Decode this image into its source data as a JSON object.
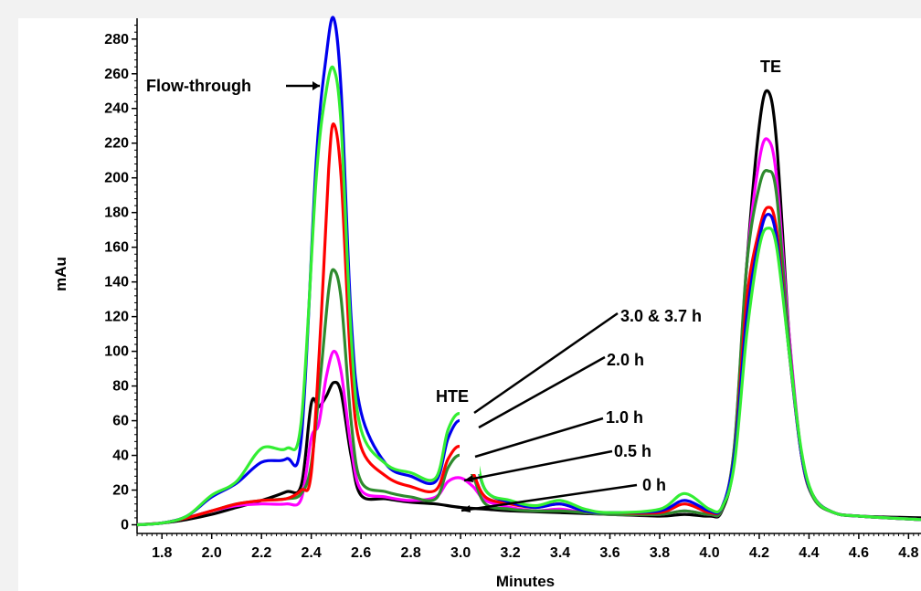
{
  "chart_data": {
    "type": "line",
    "title": "",
    "xlabel": "Minutes",
    "ylabel": "mAu",
    "xlim": [
      1.7,
      4.85
    ],
    "ylim": [
      -5,
      292
    ],
    "x_ticks": [
      "1.8",
      "2.0",
      "2.2",
      "2.4",
      "2.6",
      "2.8",
      "3.0",
      "3.2",
      "3.4",
      "3.6",
      "3.8",
      "4.0",
      "4.2",
      "4.4",
      "4.6",
      "4.8"
    ],
    "y_ticks": [
      "0",
      "20",
      "40",
      "60",
      "80",
      "100",
      "120",
      "140",
      "160",
      "180",
      "200",
      "220",
      "240",
      "260",
      "280"
    ],
    "grid": false,
    "legend": "none",
    "series": [
      {
        "color": "#000000",
        "points": [
          [
            1.7,
            0
          ],
          [
            1.8,
            1
          ],
          [
            1.9,
            3
          ],
          [
            2.0,
            6
          ],
          [
            2.1,
            10
          ],
          [
            2.2,
            14
          ],
          [
            2.3,
            19
          ],
          [
            2.36,
            23
          ],
          [
            2.4,
            70
          ],
          [
            2.43,
            68
          ],
          [
            2.46,
            74
          ],
          [
            2.49,
            82
          ],
          [
            2.52,
            76
          ],
          [
            2.56,
            40
          ],
          [
            2.6,
            17
          ],
          [
            2.7,
            15
          ],
          [
            2.8,
            13
          ],
          [
            2.9,
            12
          ],
          [
            3.0,
            10
          ],
          [
            3.1,
            9
          ],
          [
            3.2,
            8
          ],
          [
            3.4,
            7
          ],
          [
            3.6,
            6
          ],
          [
            3.8,
            5
          ],
          [
            3.9,
            6
          ],
          [
            4.0,
            5
          ],
          [
            4.05,
            8
          ],
          [
            4.1,
            40
          ],
          [
            4.15,
            150
          ],
          [
            4.2,
            230
          ],
          [
            4.235,
            250
          ],
          [
            4.27,
            220
          ],
          [
            4.32,
            110
          ],
          [
            4.37,
            40
          ],
          [
            4.42,
            15
          ],
          [
            4.5,
            7
          ],
          [
            4.6,
            5
          ],
          [
            4.85,
            4
          ]
        ]
      },
      {
        "color": "#0000ee",
        "points": [
          [
            1.7,
            0
          ],
          [
            1.8,
            1
          ],
          [
            1.9,
            5
          ],
          [
            2.0,
            16
          ],
          [
            2.1,
            24
          ],
          [
            2.2,
            36
          ],
          [
            2.3,
            38
          ],
          [
            2.36,
            50
          ],
          [
            2.42,
            210
          ],
          [
            2.46,
            270
          ],
          [
            2.49,
            292
          ],
          [
            2.52,
            250
          ],
          [
            2.56,
            120
          ],
          [
            2.6,
            65
          ],
          [
            2.7,
            35
          ],
          [
            2.8,
            28
          ],
          [
            2.9,
            25
          ],
          [
            2.95,
            50
          ],
          [
            3.0,
            60
          ],
          [
            3.05,
            45
          ],
          [
            3.1,
            20
          ],
          [
            3.2,
            13
          ],
          [
            3.3,
            10
          ],
          [
            3.4,
            12
          ],
          [
            3.5,
            8
          ],
          [
            3.6,
            7
          ],
          [
            3.8,
            8
          ],
          [
            3.9,
            14
          ],
          [
            4.0,
            8
          ],
          [
            4.05,
            10
          ],
          [
            4.1,
            40
          ],
          [
            4.15,
            120
          ],
          [
            4.2,
            165
          ],
          [
            4.235,
            179
          ],
          [
            4.27,
            165
          ],
          [
            4.32,
            100
          ],
          [
            4.37,
            40
          ],
          [
            4.42,
            16
          ],
          [
            4.5,
            7
          ],
          [
            4.6,
            5
          ],
          [
            4.85,
            3
          ]
        ]
      },
      {
        "color": "#ff0000",
        "points": [
          [
            1.7,
            0
          ],
          [
            1.8,
            1
          ],
          [
            1.9,
            4
          ],
          [
            2.0,
            8
          ],
          [
            2.1,
            12
          ],
          [
            2.2,
            14
          ],
          [
            2.3,
            15
          ],
          [
            2.36,
            20
          ],
          [
            2.4,
            30
          ],
          [
            2.44,
            120
          ],
          [
            2.47,
            205
          ],
          [
            2.49,
            231
          ],
          [
            2.52,
            200
          ],
          [
            2.56,
            90
          ],
          [
            2.6,
            45
          ],
          [
            2.7,
            28
          ],
          [
            2.8,
            22
          ],
          [
            2.9,
            20
          ],
          [
            2.95,
            38
          ],
          [
            3.0,
            45
          ],
          [
            3.05,
            30
          ],
          [
            3.1,
            16
          ],
          [
            3.2,
            12
          ],
          [
            3.3,
            10
          ],
          [
            3.4,
            12
          ],
          [
            3.5,
            8
          ],
          [
            3.6,
            7
          ],
          [
            3.8,
            7
          ],
          [
            3.9,
            12
          ],
          [
            4.0,
            7
          ],
          [
            4.05,
            10
          ],
          [
            4.1,
            40
          ],
          [
            4.15,
            130
          ],
          [
            4.2,
            170
          ],
          [
            4.235,
            183
          ],
          [
            4.27,
            170
          ],
          [
            4.32,
            100
          ],
          [
            4.37,
            40
          ],
          [
            4.42,
            16
          ],
          [
            4.5,
            7
          ],
          [
            4.6,
            5
          ],
          [
            4.85,
            3
          ]
        ]
      },
      {
        "color": "#ff00ff",
        "points": [
          [
            1.7,
            0
          ],
          [
            1.8,
            1
          ],
          [
            1.9,
            4
          ],
          [
            2.0,
            8
          ],
          [
            2.1,
            11
          ],
          [
            2.2,
            12
          ],
          [
            2.3,
            12
          ],
          [
            2.36,
            15
          ],
          [
            2.4,
            50
          ],
          [
            2.43,
            58
          ],
          [
            2.46,
            85
          ],
          [
            2.49,
            100
          ],
          [
            2.52,
            88
          ],
          [
            2.56,
            45
          ],
          [
            2.6,
            20
          ],
          [
            2.7,
            16
          ],
          [
            2.8,
            14
          ],
          [
            2.9,
            16
          ],
          [
            2.95,
            25
          ],
          [
            3.0,
            27
          ],
          [
            3.05,
            22
          ],
          [
            3.1,
            14
          ],
          [
            3.2,
            10
          ],
          [
            3.3,
            8
          ],
          [
            3.4,
            9
          ],
          [
            3.5,
            7
          ],
          [
            3.6,
            6
          ],
          [
            3.8,
            6
          ],
          [
            3.9,
            8
          ],
          [
            4.0,
            6
          ],
          [
            4.05,
            9
          ],
          [
            4.1,
            45
          ],
          [
            4.15,
            150
          ],
          [
            4.2,
            210
          ],
          [
            4.235,
            222
          ],
          [
            4.27,
            200
          ],
          [
            4.32,
            110
          ],
          [
            4.37,
            40
          ],
          [
            4.42,
            15
          ],
          [
            4.5,
            7
          ],
          [
            4.6,
            5
          ],
          [
            4.85,
            3
          ]
        ]
      },
      {
        "color": "#2e8b2e",
        "points": [
          [
            1.7,
            0
          ],
          [
            1.8,
            1
          ],
          [
            1.9,
            4
          ],
          [
            2.0,
            8
          ],
          [
            2.1,
            12
          ],
          [
            2.2,
            14
          ],
          [
            2.3,
            15
          ],
          [
            2.36,
            18
          ],
          [
            2.4,
            35
          ],
          [
            2.44,
            90
          ],
          [
            2.47,
            135
          ],
          [
            2.49,
            147
          ],
          [
            2.52,
            130
          ],
          [
            2.56,
            60
          ],
          [
            2.6,
            25
          ],
          [
            2.7,
            19
          ],
          [
            2.8,
            16
          ],
          [
            2.9,
            15
          ],
          [
            2.95,
            33
          ],
          [
            3.0,
            40
          ],
          [
            3.05,
            28
          ],
          [
            3.1,
            12
          ],
          [
            3.2,
            9
          ],
          [
            3.3,
            8
          ],
          [
            3.4,
            8
          ],
          [
            3.5,
            7
          ],
          [
            3.6,
            6
          ],
          [
            3.8,
            6
          ],
          [
            3.9,
            8
          ],
          [
            4.0,
            6
          ],
          [
            4.05,
            9
          ],
          [
            4.1,
            45
          ],
          [
            4.15,
            150
          ],
          [
            4.2,
            195
          ],
          [
            4.235,
            204
          ],
          [
            4.27,
            190
          ],
          [
            4.32,
            105
          ],
          [
            4.37,
            40
          ],
          [
            4.42,
            15
          ],
          [
            4.5,
            7
          ],
          [
            4.6,
            5
          ],
          [
            4.85,
            3
          ]
        ]
      },
      {
        "color": "#33ee33",
        "points": [
          [
            1.7,
            0
          ],
          [
            1.8,
            1
          ],
          [
            1.9,
            5
          ],
          [
            2.0,
            17
          ],
          [
            2.1,
            25
          ],
          [
            2.2,
            44
          ],
          [
            2.3,
            44
          ],
          [
            2.36,
            60
          ],
          [
            2.42,
            200
          ],
          [
            2.46,
            250
          ],
          [
            2.49,
            263
          ],
          [
            2.52,
            230
          ],
          [
            2.56,
            110
          ],
          [
            2.6,
            55
          ],
          [
            2.7,
            35
          ],
          [
            2.8,
            30
          ],
          [
            2.9,
            27
          ],
          [
            2.95,
            55
          ],
          [
            3.0,
            64
          ],
          [
            3.05,
            48
          ],
          [
            3.1,
            20
          ],
          [
            3.2,
            14
          ],
          [
            3.3,
            11
          ],
          [
            3.4,
            14
          ],
          [
            3.5,
            9
          ],
          [
            3.6,
            7
          ],
          [
            3.8,
            9
          ],
          [
            3.9,
            18
          ],
          [
            4.0,
            9
          ],
          [
            4.05,
            10
          ],
          [
            4.1,
            35
          ],
          [
            4.15,
            110
          ],
          [
            4.2,
            160
          ],
          [
            4.235,
            171
          ],
          [
            4.27,
            160
          ],
          [
            4.32,
            100
          ],
          [
            4.37,
            42
          ],
          [
            4.42,
            16
          ],
          [
            4.5,
            7
          ],
          [
            4.6,
            5
          ],
          [
            4.85,
            3
          ]
        ]
      }
    ],
    "annotations": [
      {
        "text": "Flow-through"
      },
      {
        "text": "TE"
      },
      {
        "text": "HTE"
      },
      {
        "text": "3.0 & 3.7 h"
      },
      {
        "text": "2.0 h"
      },
      {
        "text": "1.0 h"
      },
      {
        "text": "0.5 h"
      },
      {
        "text": "0 h"
      }
    ]
  }
}
